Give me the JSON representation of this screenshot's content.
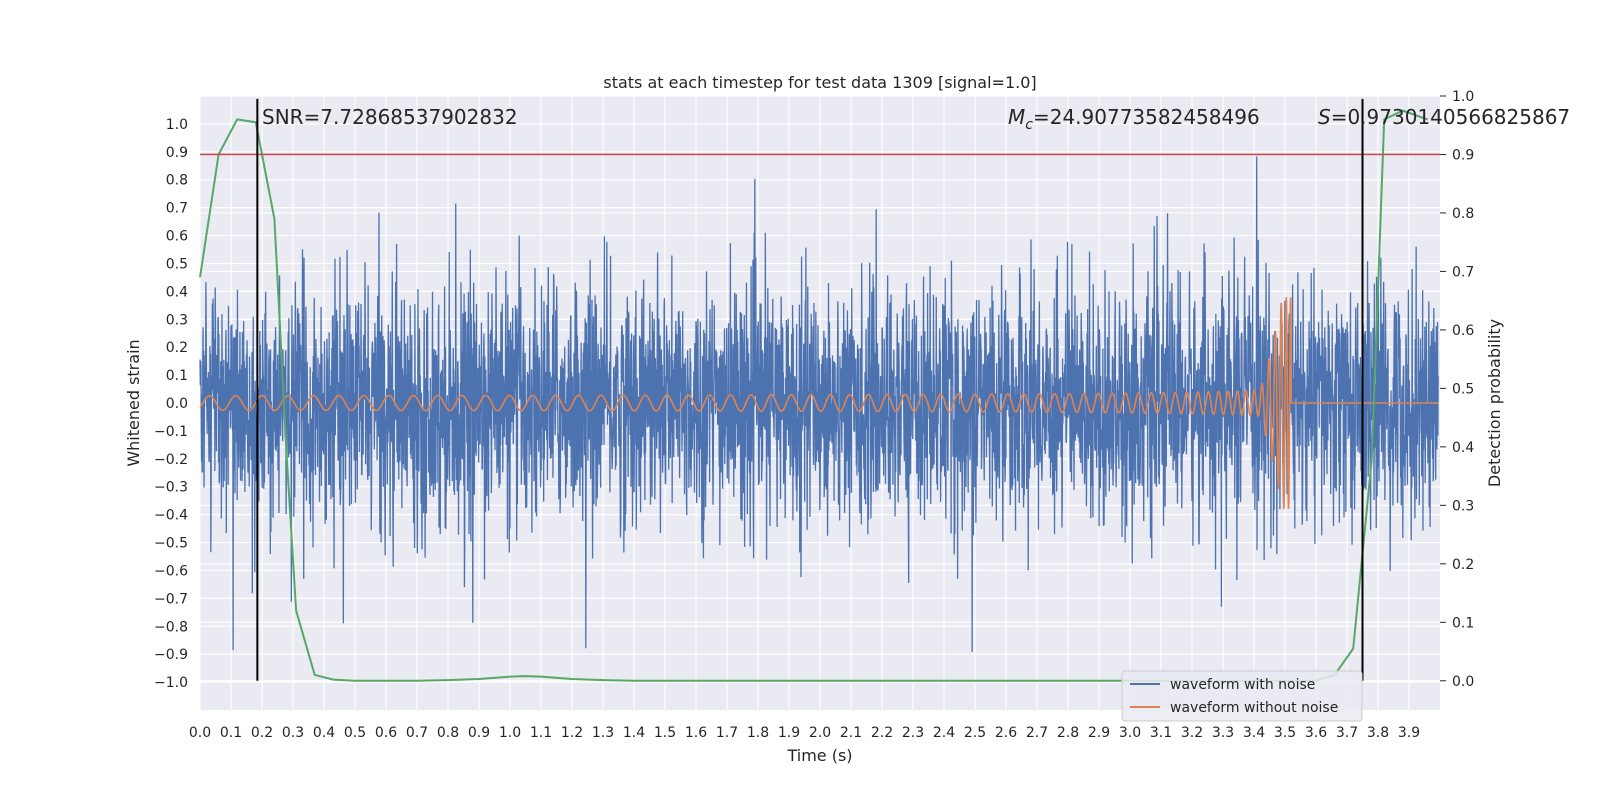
{
  "chart_data": {
    "type": "line",
    "title": "stats at each timestep for test data 1309 [signal=1.0]",
    "xlabel": "Time (s)",
    "ylabel": "Whitened strain",
    "y2label": "Detection probability",
    "xlim": [
      0.0,
      4.0
    ],
    "ylim": [
      -1.1,
      1.1
    ],
    "y2lim": [
      -0.05,
      1.0
    ],
    "x_ticks": [
      "0.0",
      "0.1",
      "0.2",
      "0.3",
      "0.4",
      "0.5",
      "0.6",
      "0.7",
      "0.8",
      "0.9",
      "1.0",
      "1.1",
      "1.2",
      "1.3",
      "1.4",
      "1.5",
      "1.6",
      "1.7",
      "1.8",
      "1.9",
      "2.0",
      "2.1",
      "2.2",
      "2.3",
      "2.4",
      "2.5",
      "2.6",
      "2.7",
      "2.8",
      "2.9",
      "3.0",
      "3.1",
      "3.2",
      "3.3",
      "3.4",
      "3.5",
      "3.6",
      "3.7",
      "3.8",
      "3.9"
    ],
    "y_ticks": [
      "1.0",
      "0.9",
      "0.8",
      "0.7",
      "0.6",
      "0.5",
      "0.4",
      "0.3",
      "0.2",
      "0.1",
      "0.0",
      "−0.1",
      "−0.2",
      "−0.3",
      "−0.4",
      "−0.5",
      "−0.6",
      "−0.7",
      "−0.8",
      "−0.9",
      "−1.0"
    ],
    "y2_ticks": [
      "1.0",
      "0.9",
      "0.8",
      "0.7",
      "0.6",
      "0.5",
      "0.4",
      "0.3",
      "0.2",
      "0.1",
      "0.0"
    ],
    "grid": true,
    "legend_placement": "lower-right",
    "series": [
      {
        "name": "waveform with noise",
        "color": "#4c72b0",
        "description_only_for_generation": "noise",
        "noise_amplitude": 0.3
      },
      {
        "name": "waveform without noise",
        "color": "#dd8452",
        "chirp_end_time": 3.52,
        "chirp_peak_amplitude": 0.38
      },
      {
        "axis": "right",
        "color": "#55a868",
        "x": [
          0.0,
          0.06,
          0.12,
          0.18,
          0.24,
          0.28,
          0.31,
          0.37,
          0.43,
          0.5,
          0.6,
          0.7,
          0.8,
          0.9,
          1.0,
          1.05,
          1.1,
          1.2,
          1.3,
          1.4,
          1.6,
          1.8,
          2.0,
          2.2,
          2.4,
          2.6,
          2.8,
          3.0,
          3.2,
          3.4,
          3.5,
          3.6,
          3.66,
          3.72,
          3.78,
          3.82,
          3.88,
          3.96
        ],
        "y": [
          0.69,
          0.9,
          0.96,
          0.955,
          0.79,
          0.38,
          0.12,
          0.01,
          0.002,
          0.0,
          0.0,
          0.0,
          0.001,
          0.003,
          0.007,
          0.008,
          0.007,
          0.003,
          0.001,
          0.0,
          0.0,
          0.0,
          0.0,
          0.0,
          0.0,
          0.0,
          0.0,
          0.0,
          0.0,
          0.0,
          0.0,
          0.0,
          0.01,
          0.055,
          0.38,
          0.96,
          0.975,
          0.96
        ]
      }
    ],
    "threshold_line": {
      "y2": 0.9,
      "color": "#c44e52"
    },
    "vertical_lines": [
      {
        "x": 0.185,
        "color": "#000000"
      },
      {
        "x": 3.75,
        "color": "#000000"
      }
    ],
    "annotations": {
      "snr": "SNR=7.72868537902832",
      "mc_symbol": "M",
      "mc_sub": "c",
      "mc_value": "=24.90773582458496",
      "s_symbol": "S",
      "s_value": "=0.9730140566825867"
    }
  }
}
